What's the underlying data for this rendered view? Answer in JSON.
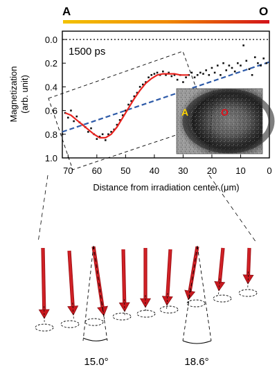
{
  "gradient_bar": {
    "left_label": "A",
    "right_label": "O",
    "colors": {
      "start": "#f2c200",
      "end": "#d3131a",
      "left_label": "#e67e22",
      "right_label": "#d0021b"
    }
  },
  "inset": {
    "left_label": "A",
    "right_label": "O",
    "colors": {
      "left_label": "#ffd400",
      "right_label": "#e0101a"
    }
  },
  "annotation": {
    "text": "1500 ps",
    "color": "#24346e"
  },
  "angles": {
    "left": "15.0°",
    "right": "18.6°"
  },
  "colors": {
    "fit_line": "#e8231f",
    "trend_line": "#2d5aa8",
    "arrow": "#c8181e",
    "points": "#111111"
  },
  "chart_data": {
    "type": "scatter",
    "xlabel": "Distance from irradiation center (μm)",
    "ylabel_line1": "Magnetization",
    "ylabel_line2": "(arb. unit)",
    "xlim": [
      72,
      0
    ],
    "ylim": [
      1.0,
      0.0
    ],
    "xticks": [
      70,
      60,
      50,
      40,
      30,
      20,
      10,
      0
    ],
    "xtick_labels": [
      "70",
      "60",
      "50",
      "40",
      "30",
      "20",
      "10",
      "0"
    ],
    "yticks": [
      0.0,
      0.2,
      0.4,
      0.6,
      0.8,
      1.0
    ],
    "ytick_labels": [
      "0.0",
      "0.2",
      "0.4",
      "0.6",
      "0.8",
      "1.0"
    ],
    "reference_line_y": 0.0,
    "measured": {
      "x": [
        72,
        71,
        70,
        69,
        68,
        67,
        66,
        65,
        64,
        63,
        62,
        61,
        60,
        59,
        58,
        57,
        56,
        55,
        54,
        53,
        52,
        51,
        50,
        49,
        48,
        47,
        46,
        45,
        44,
        43,
        42,
        41,
        40,
        39,
        38,
        37,
        36,
        35,
        34,
        33,
        32,
        31,
        30,
        29,
        28,
        27,
        26,
        25,
        24,
        23,
        22,
        21,
        20,
        19,
        18,
        17,
        16,
        15,
        14,
        13,
        12,
        11,
        10,
        9,
        8,
        7,
        6,
        5,
        4,
        3,
        2,
        1
      ],
      "y": [
        0.8,
        0.62,
        0.66,
        0.6,
        0.69,
        0.65,
        0.7,
        0.72,
        0.74,
        0.78,
        0.75,
        0.8,
        0.84,
        0.82,
        0.8,
        0.85,
        0.8,
        0.78,
        0.76,
        0.72,
        0.68,
        0.64,
        0.6,
        0.55,
        0.52,
        0.48,
        0.45,
        0.4,
        0.38,
        0.36,
        0.32,
        0.3,
        0.29,
        0.28,
        0.3,
        0.27,
        0.3,
        0.28,
        0.31,
        0.3,
        0.34,
        0.3,
        0.36,
        0.32,
        0.3,
        0.28,
        0.32,
        0.3,
        0.28,
        0.29,
        0.26,
        0.3,
        0.24,
        0.28,
        0.22,
        0.3,
        0.2,
        0.26,
        0.22,
        0.24,
        0.27,
        0.2,
        0.22,
        0.05,
        0.18,
        0.25,
        0.3,
        0.15,
        0.2,
        0.22,
        0.16,
        0.2
      ]
    },
    "fit": {
      "x": [
        71,
        69,
        67,
        65,
        63,
        61,
        59,
        57,
        55,
        53,
        51,
        49,
        47,
        45,
        43,
        41,
        39,
        37,
        35,
        33,
        31,
        29,
        28
      ],
      "y": [
        0.62,
        0.64,
        0.68,
        0.72,
        0.76,
        0.8,
        0.83,
        0.83,
        0.8,
        0.74,
        0.66,
        0.58,
        0.5,
        0.43,
        0.37,
        0.33,
        0.3,
        0.29,
        0.29,
        0.29,
        0.3,
        0.3,
        0.3
      ]
    },
    "trend": {
      "x": [
        72,
        0
      ],
      "y": [
        0.78,
        0.19
      ]
    }
  }
}
